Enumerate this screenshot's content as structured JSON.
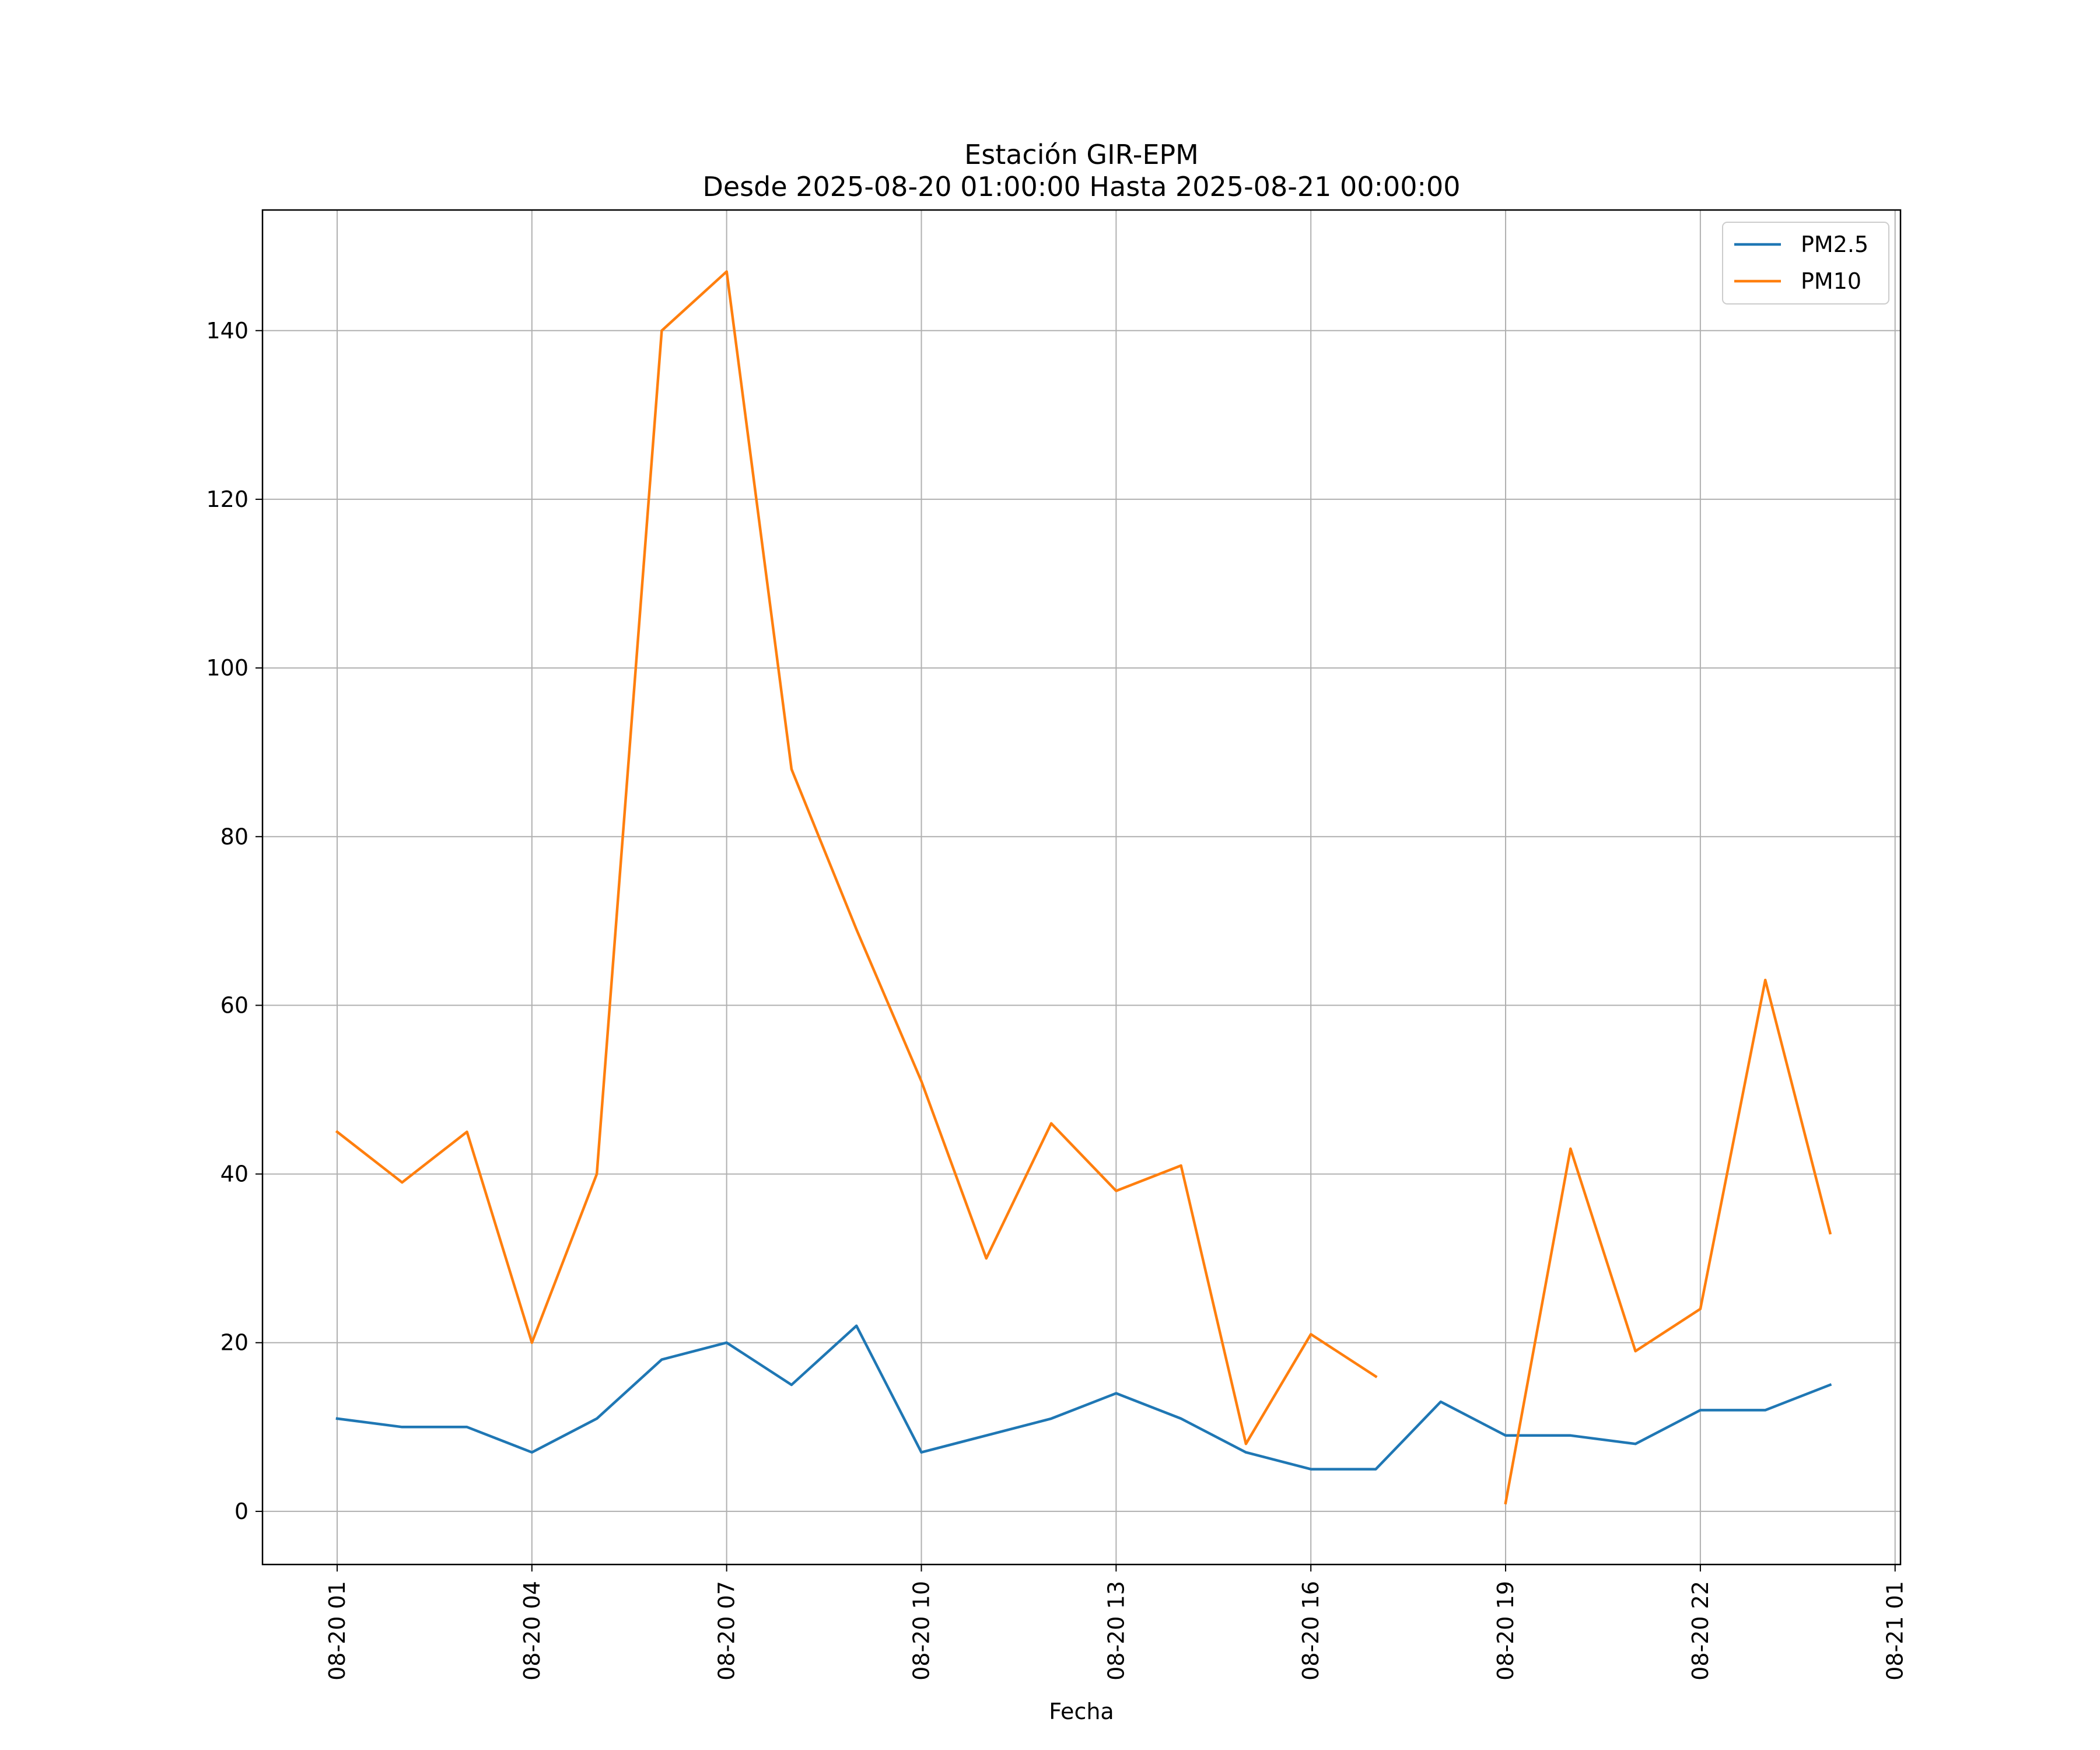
{
  "chart_data": {
    "type": "line",
    "title": "Estación GIR-EPM",
    "subtitle": "Desde 2025-08-20 01:00:00 Hasta 2025-08-21 00:00:00",
    "xlabel": "Fecha",
    "ylabel": "",
    "x": [
      "2025-08-20 01:00",
      "2025-08-20 02:00",
      "2025-08-20 03:00",
      "2025-08-20 04:00",
      "2025-08-20 05:00",
      "2025-08-20 06:00",
      "2025-08-20 07:00",
      "2025-08-20 08:00",
      "2025-08-20 09:00",
      "2025-08-20 10:00",
      "2025-08-20 11:00",
      "2025-08-20 12:00",
      "2025-08-20 13:00",
      "2025-08-20 14:00",
      "2025-08-20 15:00",
      "2025-08-20 16:00",
      "2025-08-20 17:00",
      "2025-08-20 18:00",
      "2025-08-20 19:00",
      "2025-08-20 20:00",
      "2025-08-20 21:00",
      "2025-08-20 22:00",
      "2025-08-20 23:00",
      "2025-08-21 00:00"
    ],
    "series": [
      {
        "name": "PM2.5",
        "color": "#1f77b4",
        "values": [
          11,
          10,
          10,
          7,
          11,
          18,
          20,
          15,
          22,
          7,
          9,
          11,
          14,
          11,
          7,
          5,
          5,
          13,
          9,
          9,
          8,
          12,
          12,
          15
        ]
      },
      {
        "name": "PM10",
        "color": "#ff7f0e",
        "values": [
          45,
          39,
          45,
          20,
          40,
          140,
          147,
          88,
          69,
          51,
          30,
          46,
          38,
          41,
          8,
          21,
          16,
          null,
          1,
          43,
          19,
          24,
          63,
          33
        ]
      }
    ],
    "xticks": [
      {
        "x": "2025-08-20 01:00",
        "label": "08-20 01"
      },
      {
        "x": "2025-08-20 04:00",
        "label": "08-20 04"
      },
      {
        "x": "2025-08-20 07:00",
        "label": "08-20 07"
      },
      {
        "x": "2025-08-20 10:00",
        "label": "08-20 10"
      },
      {
        "x": "2025-08-20 13:00",
        "label": "08-20 13"
      },
      {
        "x": "2025-08-20 16:00",
        "label": "08-20 16"
      },
      {
        "x": "2025-08-20 19:00",
        "label": "08-20 19"
      },
      {
        "x": "2025-08-20 22:00",
        "label": "08-20 22"
      },
      {
        "x": "2025-08-21 01:00",
        "label": "08-21 01"
      }
    ],
    "yticks": [
      0,
      20,
      40,
      60,
      80,
      100,
      120,
      140
    ],
    "xlim": [
      "2025-08-19 23:51",
      "2025-08-21 01:05"
    ],
    "ylim": [
      -6.3,
      154.3
    ],
    "grid": true,
    "legend": "top-right"
  }
}
